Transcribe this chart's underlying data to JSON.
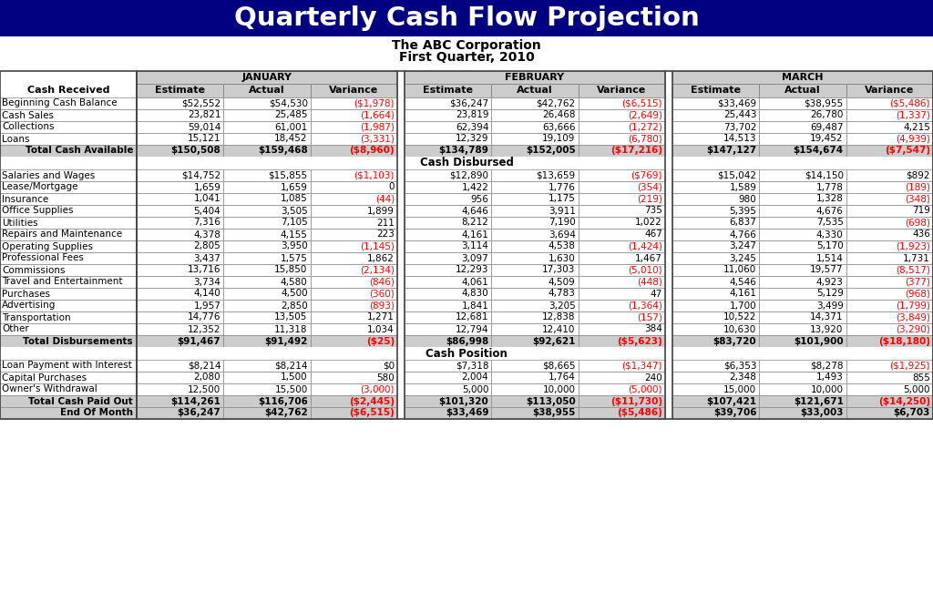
{
  "title": "Quarterly Cash Flow Projection",
  "subtitle1": "The ABC Corporation",
  "subtitle2": "First Quarter, 2010",
  "title_bg": "#000080",
  "title_color": "#FFFFFF",
  "header_bg": "#CCCCCC",
  "total_bg": "#CCCCCC",
  "negative_color": "#FF0000",
  "positive_color": "#000000",
  "months": [
    "JANUARY",
    "FEBRUARY",
    "MARCH"
  ],
  "col_headers": [
    "Estimate",
    "Actual",
    "Variance"
  ],
  "row_label_header": "Cash Received",
  "sections": {
    "received": {
      "header": "Cash Received",
      "rows": [
        [
          "Beginning Cash Balance",
          "$52,552",
          "$54,530",
          "($1,978)",
          "$36,247",
          "$42,762",
          "($6,515)",
          "$33,469",
          "$38,955",
          "($5,486)"
        ],
        [
          "Cash Sales",
          "23,821",
          "25,485",
          "(1,664)",
          "23,819",
          "26,468",
          "(2,649)",
          "25,443",
          "26,780",
          "(1,337)"
        ],
        [
          "Collections",
          "59,014",
          "61,001",
          "(1,987)",
          "62,394",
          "63,666",
          "(1,272)",
          "73,702",
          "69,487",
          "4,215"
        ],
        [
          "Loans",
          "15,121",
          "18,452",
          "(3,331)",
          "12,329",
          "19,109",
          "(6,780)",
          "14,513",
          "19,452",
          "(4,939)"
        ]
      ],
      "total": [
        "Total Cash Available",
        "$150,508",
        "$159,468",
        "($8,960)",
        "$134,789",
        "$152,005",
        "($17,216)",
        "$147,127",
        "$154,674",
        "($7,547)"
      ]
    },
    "disbursed": {
      "header": "Cash Disbursed",
      "rows": [
        [
          "Salaries and Wages",
          "$14,752",
          "$15,855",
          "($1,103)",
          "$12,890",
          "$13,659",
          "($769)",
          "$15,042",
          "$14,150",
          "$892"
        ],
        [
          "Lease/Mortgage",
          "1,659",
          "1,659",
          "0",
          "1,422",
          "1,776",
          "(354)",
          "1,589",
          "1,778",
          "(189)"
        ],
        [
          "Insurance",
          "1,041",
          "1,085",
          "(44)",
          "956",
          "1,175",
          "(219)",
          "980",
          "1,328",
          "(348)"
        ],
        [
          "Office Supplies",
          "5,404",
          "3,505",
          "1,899",
          "4,646",
          "3,911",
          "735",
          "5,395",
          "4,676",
          "719"
        ],
        [
          "Utilities",
          "7,316",
          "7,105",
          "211",
          "8,212",
          "7,190",
          "1,022",
          "6,837",
          "7,535",
          "(698)"
        ],
        [
          "Repairs and Maintenance",
          "4,378",
          "4,155",
          "223",
          "4,161",
          "3,694",
          "467",
          "4,766",
          "4,330",
          "436"
        ],
        [
          "Operating Supplies",
          "2,805",
          "3,950",
          "(1,145)",
          "3,114",
          "4,538",
          "(1,424)",
          "3,247",
          "5,170",
          "(1,923)"
        ],
        [
          "Professional Fees",
          "3,437",
          "1,575",
          "1,862",
          "3,097",
          "1,630",
          "1,467",
          "3,245",
          "1,514",
          "1,731"
        ],
        [
          "Commissions",
          "13,716",
          "15,850",
          "(2,134)",
          "12,293",
          "17,303",
          "(5,010)",
          "11,060",
          "19,577",
          "(8,517)"
        ],
        [
          "Travel and Entertainment",
          "3,734",
          "4,580",
          "(846)",
          "4,061",
          "4,509",
          "(448)",
          "4,546",
          "4,923",
          "(377)"
        ],
        [
          "Purchases",
          "4,140",
          "4,500",
          "(360)",
          "4,830",
          "4,783",
          "47",
          "4,161",
          "5,129",
          "(968)"
        ],
        [
          "Advertising",
          "1,957",
          "2,850",
          "(893)",
          "1,841",
          "3,205",
          "(1,364)",
          "1,700",
          "3,499",
          "(1,799)"
        ],
        [
          "Transportation",
          "14,776",
          "13,505",
          "1,271",
          "12,681",
          "12,838",
          "(157)",
          "10,522",
          "14,371",
          "(3,849)"
        ],
        [
          "Other",
          "12,352",
          "11,318",
          "1,034",
          "12,794",
          "12,410",
          "384",
          "10,630",
          "13,920",
          "(3,290)"
        ]
      ],
      "total": [
        "Total Disbursements",
        "$91,467",
        "$91,492",
        "($25)",
        "$86,998",
        "$92,621",
        "($5,623)",
        "$83,720",
        "$101,900",
        "($18,180)"
      ]
    },
    "position": {
      "header": "Cash Position",
      "rows": [
        [
          "Loan Payment with Interest",
          "$8,214",
          "$8,214",
          "$0",
          "$7,318",
          "$8,665",
          "($1,347)",
          "$6,353",
          "$8,278",
          "($1,925)"
        ],
        [
          "Capital Purchases",
          "2,080",
          "1,500",
          "580",
          "2,004",
          "1,764",
          "240",
          "2,348",
          "1,493",
          "855"
        ],
        [
          "Owner's Withdrawal",
          "12,500",
          "15,500",
          "(3,000)",
          "5,000",
          "10,000",
          "(5,000)",
          "15,000",
          "10,000",
          "5,000"
        ]
      ],
      "total1": [
        "Total Cash Paid Out",
        "$114,261",
        "$116,706",
        "($2,445)",
        "$101,320",
        "$113,050",
        "($11,730)",
        "$107,421",
        "$121,671",
        "($14,250)"
      ],
      "total2": [
        "End Of Month",
        "$36,247",
        "$42,762",
        "($6,515)",
        "$33,469",
        "$38,955",
        "($5,486)",
        "$39,706",
        "$33,003",
        "$6,703"
      ]
    }
  }
}
